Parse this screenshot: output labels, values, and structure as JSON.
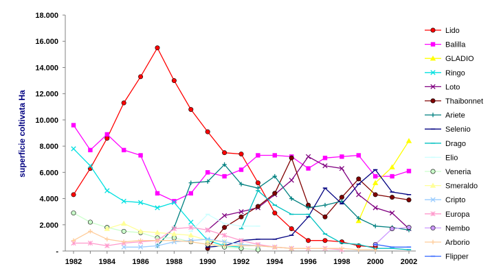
{
  "chart_data": {
    "type": "line",
    "title": "",
    "xlabel": "",
    "ylabel": "superficie coltivata Ha",
    "x": [
      1982,
      1983,
      1984,
      1985,
      1986,
      1987,
      1988,
      1989,
      1990,
      1991,
      1992,
      1993,
      1994,
      1995,
      1996,
      1997,
      1998,
      1999,
      2000,
      2001,
      2002
    ],
    "x_ticks": [
      1982,
      1984,
      1986,
      1988,
      1990,
      1992,
      1994,
      1996,
      1998,
      2000,
      2002
    ],
    "ylim": [
      0,
      18000
    ],
    "y_ticks": [
      0,
      2000,
      4000,
      6000,
      8000,
      10000,
      12000,
      14000,
      16000,
      18000
    ],
    "y_tick_labels": [
      "-",
      "2.000",
      "4.000",
      "6.000",
      "8.000",
      "10.000",
      "12.000",
      "14.000",
      "16.000",
      "18.000"
    ],
    "grid": false,
    "legend_position": "right",
    "series": [
      {
        "name": "Lido",
        "color": "#ff0000",
        "marker": "circle",
        "values": [
          4300,
          6300,
          8600,
          11300,
          13300,
          15500,
          13000,
          10800,
          9100,
          7500,
          7400,
          5200,
          2900,
          1700,
          800,
          800,
          700,
          400,
          300,
          null,
          null
        ]
      },
      {
        "name": "Balilla",
        "color": "#ff00ff",
        "marker": "square",
        "values": [
          9600,
          7700,
          8900,
          7700,
          7300,
          4400,
          3800,
          4400,
          6000,
          5700,
          6200,
          7300,
          7300,
          7200,
          6300,
          7100,
          7200,
          7300,
          5700,
          5700,
          6100
        ]
      },
      {
        "name": "GLADIO",
        "color": "#ffff00",
        "marker": "triangle",
        "values": [
          null,
          null,
          null,
          null,
          null,
          null,
          null,
          null,
          null,
          null,
          null,
          null,
          null,
          null,
          null,
          null,
          null,
          2300,
          5200,
          6400,
          8400
        ]
      },
      {
        "name": "Ringo",
        "color": "#00e0e0",
        "marker": "x",
        "values": [
          7800,
          6500,
          4600,
          3800,
          3700,
          3300,
          3700,
          2200,
          800,
          400,
          300,
          null,
          null,
          null,
          null,
          null,
          null,
          null,
          null,
          null,
          null
        ]
      },
      {
        "name": "Loto",
        "color": "#800080",
        "marker": "x",
        "values": [
          null,
          null,
          null,
          null,
          null,
          null,
          null,
          null,
          1600,
          2700,
          3000,
          3300,
          4300,
          5400,
          7200,
          6500,
          6300,
          4300,
          3300,
          2900,
          1700
        ]
      },
      {
        "name": "Thaibonnet",
        "color": "#800000",
        "marker": "circle",
        "values": [
          null,
          null,
          null,
          null,
          null,
          null,
          null,
          null,
          200,
          1800,
          2600,
          3400,
          4400,
          7100,
          3500,
          2600,
          4100,
          5500,
          4300,
          4100,
          3900
        ]
      },
      {
        "name": "Ariete",
        "color": "#008080",
        "marker": "plus",
        "values": [
          null,
          null,
          null,
          null,
          null,
          400,
          1800,
          5200,
          5300,
          6600,
          5100,
          4800,
          5700,
          4000,
          3300,
          3500,
          3800,
          2500,
          1900,
          1800,
          1600
        ]
      },
      {
        "name": "Selenio",
        "color": "#000080",
        "marker": "dash",
        "values": [
          null,
          null,
          null,
          null,
          null,
          null,
          null,
          null,
          300,
          400,
          800,
          900,
          900,
          1200,
          2600,
          4800,
          3600,
          5100,
          6200,
          4500,
          4300
        ]
      },
      {
        "name": "Drago",
        "color": "#00c0c0",
        "marker": "dash",
        "values": [
          null,
          null,
          null,
          null,
          null,
          null,
          null,
          null,
          null,
          null,
          1700,
          4600,
          3500,
          2800,
          2800,
          1300,
          600,
          500,
          200,
          200,
          100
        ]
      },
      {
        "name": "Elio",
        "color": "#ccffff",
        "marker": "dash",
        "values": [
          null,
          null,
          null,
          null,
          null,
          null,
          null,
          1500,
          2800,
          2100,
          1900,
          1900,
          null,
          null,
          null,
          null,
          null,
          null,
          null,
          null,
          null
        ]
      },
      {
        "name": "Veneria",
        "color": "#ccffcc",
        "marker": "circle",
        "values": [
          2900,
          2200,
          1800,
          1500,
          1400,
          1000,
          1000,
          700,
          500,
          300,
          200,
          100,
          null,
          null,
          null,
          null,
          null,
          null,
          null,
          null,
          null
        ]
      },
      {
        "name": "Smeraldo",
        "color": "#ffff99",
        "marker": "triangle",
        "values": [
          null,
          null,
          1700,
          2100,
          1500,
          1400,
          1300,
          1200,
          800,
          700,
          500,
          400,
          300,
          200,
          null,
          null,
          null,
          null,
          null,
          null,
          null
        ]
      },
      {
        "name": "Cripto",
        "color": "#99ccff",
        "marker": "x",
        "values": [
          null,
          null,
          null,
          300,
          300,
          400,
          700,
          800,
          900,
          700,
          500,
          400,
          300,
          200,
          null,
          null,
          null,
          null,
          null,
          null,
          null
        ]
      },
      {
        "name": "Europa",
        "color": "#ff99cc",
        "marker": "star",
        "values": [
          600,
          600,
          400,
          600,
          700,
          800,
          1700,
          1800,
          1600,
          1200,
          800,
          500,
          300,
          200,
          200,
          200,
          100,
          null,
          null,
          null,
          null
        ]
      },
      {
        "name": "Nembo",
        "color": "#cc99ff",
        "marker": "circle",
        "values": [
          null,
          null,
          null,
          null,
          null,
          null,
          null,
          null,
          null,
          null,
          null,
          null,
          null,
          null,
          null,
          null,
          null,
          null,
          500,
          1700,
          1800
        ]
      },
      {
        "name": "Arborio",
        "color": "#ffcc99",
        "marker": "plus",
        "values": [
          800,
          1500,
          900,
          700,
          800,
          800,
          800,
          700,
          500,
          400,
          400,
          400,
          300,
          200,
          200,
          200,
          200,
          100,
          100,
          null,
          null
        ]
      },
      {
        "name": "Flipper",
        "color": "#3366ff",
        "marker": "dash",
        "values": [
          null,
          null,
          null,
          null,
          null,
          null,
          null,
          null,
          null,
          null,
          null,
          null,
          null,
          null,
          null,
          null,
          null,
          null,
          500,
          300,
          300
        ]
      }
    ]
  }
}
